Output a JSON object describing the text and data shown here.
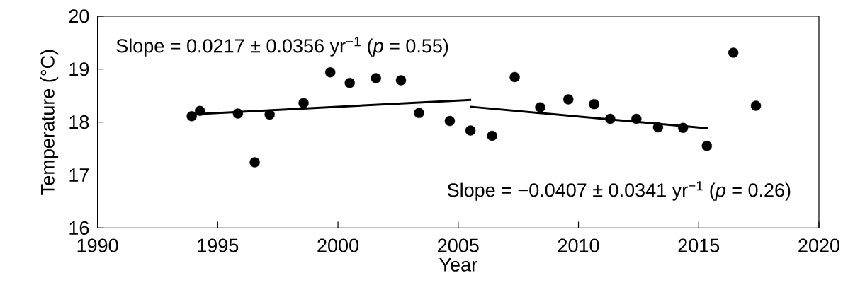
{
  "chart_data": {
    "type": "scatter",
    "xlabel": "Year",
    "ylabel": "Temperature (°C)",
    "annotations": [
      "Slope = 0.0217 ± 0.0356 yr$^{−1}$ (*p* = 0.55)",
      "Slope = −0.0407 ± 0.0341 yr$^{−1}$ (*p* = 0.26)"
    ],
    "x": [
      1993.92,
      1994.26,
      1995.84,
      1996.54,
      1997.16,
      1998.57,
      1999.68,
      2000.49,
      2001.58,
      2002.62,
      2003.37,
      2004.65,
      2005.51,
      2006.41,
      2007.35,
      2008.41,
      2009.58,
      2010.65,
      2011.32,
      2012.41,
      2013.31,
      2014.35,
      2015.34,
      2016.44,
      2017.38
    ],
    "series": [
      {
        "color": "#000000",
        "marker": "circle",
        "values": [
          18.11,
          18.21,
          18.16,
          17.24,
          18.14,
          18.36,
          18.94,
          18.74,
          18.83,
          18.79,
          18.17,
          18.02,
          17.84,
          17.74,
          18.85,
          18.28,
          18.43,
          18.34,
          18.06,
          18.06,
          17.9,
          17.89,
          17.55,
          19.31,
          18.31
        ]
      },
      {
        "type": "line",
        "color": "#000000",
        "line_style": "solid",
        "x": [
          1994.15,
          2005.54
        ],
        "values": [
          18.15,
          18.42
        ]
      },
      {
        "type": "line",
        "color": "#000000",
        "line_style": "solid",
        "x": [
          2005.5,
          2015.39
        ],
        "values": [
          18.29,
          17.88
        ]
      }
    ],
    "xlim": [
      1990,
      2020
    ],
    "xticks": [
      1990,
      1995,
      2000,
      2005,
      2010,
      2015,
      2020
    ],
    "ylim": [
      16,
      20
    ],
    "yticks": [
      16,
      17,
      18,
      19,
      20
    ],
    "grid": false,
    "legend": false
  }
}
